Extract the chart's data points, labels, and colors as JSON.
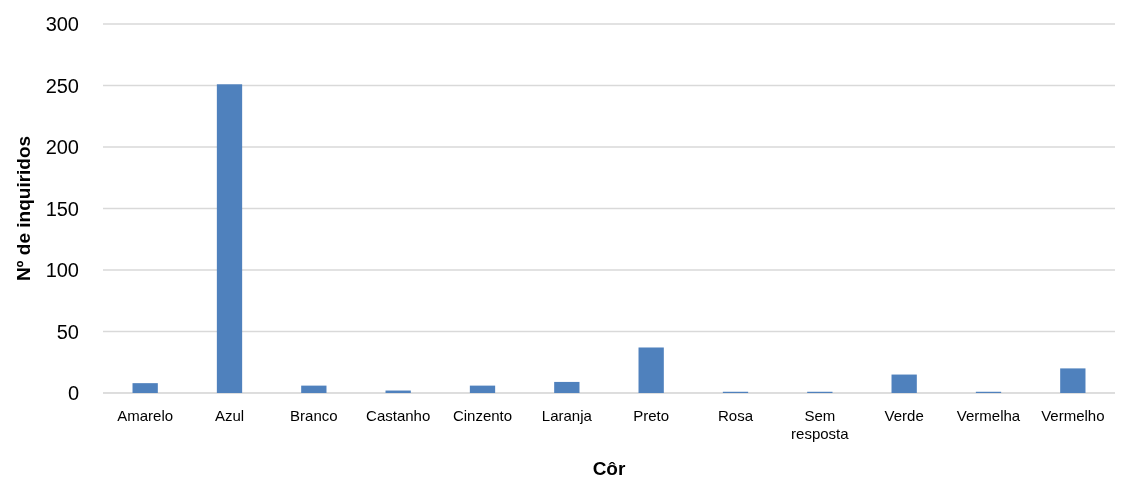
{
  "chart_data": {
    "type": "bar",
    "xlabel": "Côr",
    "ylabel": "Nº de inquiridos",
    "categories": [
      "Amarelo",
      "Azul",
      "Branco",
      "Castanho",
      "Cinzento",
      "Laranja",
      "Preto",
      "Rosa",
      "Sem resposta",
      "Verde",
      "Vermelha",
      "Vermelho"
    ],
    "values": [
      8,
      251,
      6,
      2,
      6,
      9,
      37,
      1,
      1,
      15,
      1,
      20
    ],
    "color": "#4f81bd",
    "ylim": [
      0,
      300
    ],
    "yticks": [
      0,
      50,
      100,
      150,
      200,
      250,
      300
    ],
    "grid": "y"
  }
}
